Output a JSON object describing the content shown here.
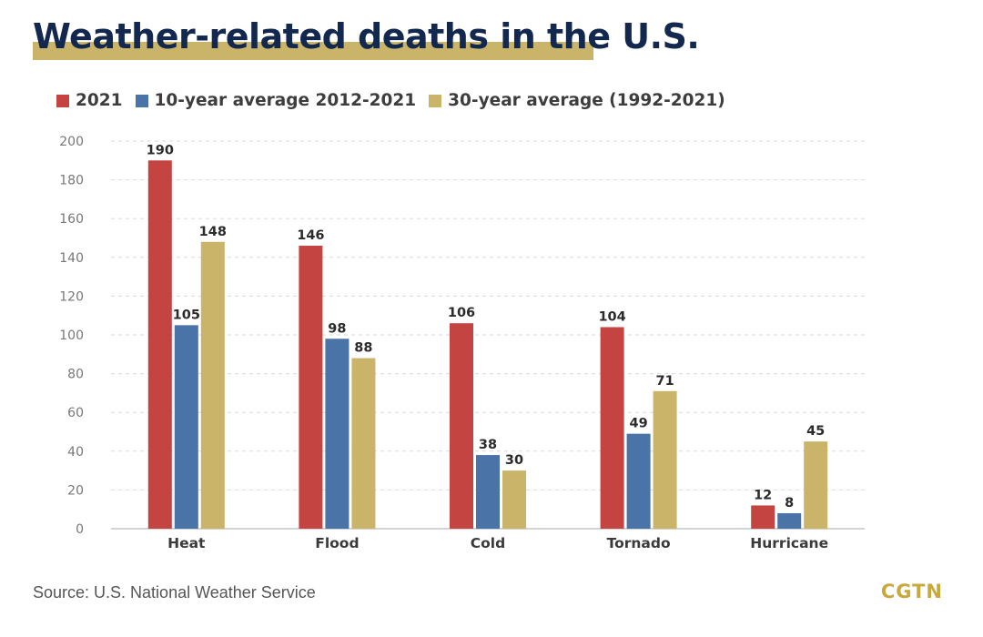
{
  "title": "Weather-related deaths in the U.S.",
  "source": "Source: U.S. National Weather Service",
  "brand": "CGTN",
  "colors": {
    "title": "#13284f",
    "title_bar": "#c9b46a",
    "series": [
      "#c44441",
      "#4a73a8",
      "#c9b46a"
    ]
  },
  "chart_data": {
    "type": "bar",
    "categories": [
      "Heat",
      "Flood",
      "Cold",
      "Tornado",
      "Hurricane"
    ],
    "series": [
      {
        "name": "2021",
        "values": [
          190,
          146,
          106,
          104,
          12
        ]
      },
      {
        "name": "10-year average 2012-2021",
        "values": [
          105,
          98,
          38,
          49,
          8
        ]
      },
      {
        "name": "30-year average (1992-2021)",
        "values": [
          148,
          88,
          30,
          71,
          45
        ]
      }
    ],
    "ylim": [
      0,
      200
    ],
    "yticks": [
      0,
      20,
      40,
      60,
      80,
      100,
      120,
      140,
      160,
      180,
      200
    ],
    "grid": true,
    "legend": "top-left"
  }
}
